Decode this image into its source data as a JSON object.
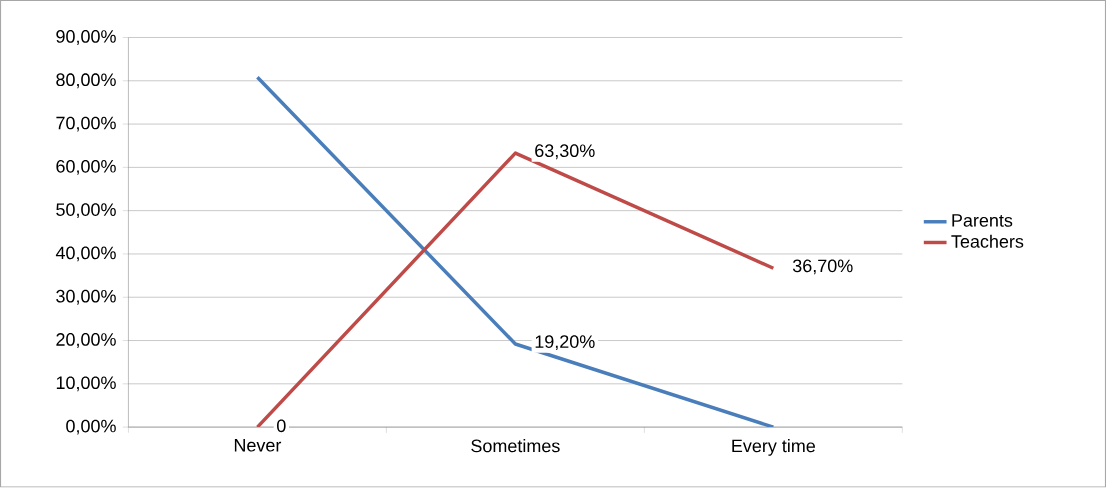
{
  "chart_data": {
    "type": "line",
    "categories": [
      "Never",
      "Sometimes",
      "Every time"
    ],
    "series": [
      {
        "name": "Parents",
        "color": "#4a7ebb",
        "values": [
          80.8,
          19.2,
          0
        ],
        "value_labels": [
          null,
          "19,20%",
          null
        ]
      },
      {
        "name": "Teachers",
        "color": "#be4b48",
        "values": [
          0,
          63.3,
          36.7
        ],
        "value_labels": [
          "0",
          "63,30%",
          "36,70%"
        ]
      }
    ],
    "ylim": [
      0,
      90
    ],
    "yticks": [
      {
        "value": 0,
        "label": "0,00%"
      },
      {
        "value": 10,
        "label": "10,00%"
      },
      {
        "value": 20,
        "label": "20,00%"
      },
      {
        "value": 30,
        "label": "30,00%"
      },
      {
        "value": 40,
        "label": "40,00%"
      },
      {
        "value": 50,
        "label": "50,00%"
      },
      {
        "value": 60,
        "label": "60,00%"
      },
      {
        "value": 70,
        "label": "70,00%"
      },
      {
        "value": 80,
        "label": "80,00%"
      },
      {
        "value": 90,
        "label": "90,00%"
      }
    ],
    "grid": "y",
    "legend": "right",
    "marker": "none",
    "line_style": "solid"
  }
}
